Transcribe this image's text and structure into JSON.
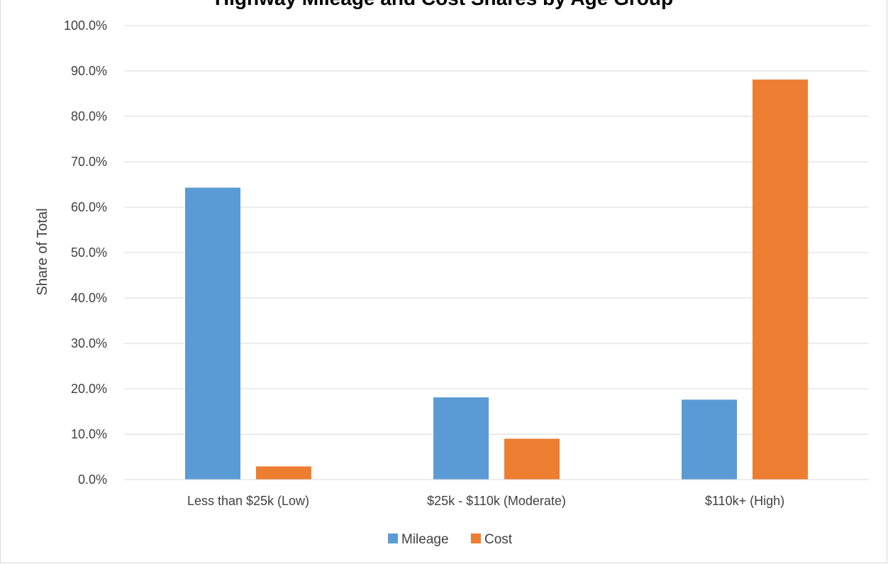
{
  "chart_data": {
    "type": "bar",
    "title": "Highway Mileage and Cost Shares by Age Group",
    "categories": [
      "Less than $25k (Low)",
      "$25k - $110k (Moderate)",
      "$110k+ (High)"
    ],
    "series": [
      {
        "name": "Mileage",
        "color": "#5b9bd5",
        "values": [
          64.3,
          18.1,
          17.6
        ]
      },
      {
        "name": "Cost",
        "color": "#ed7d31",
        "values": [
          2.9,
          9.0,
          88.1
        ]
      }
    ],
    "xlabel": "",
    "ylabel": "Share of Total",
    "ylim": [
      0,
      100
    ],
    "yticks": [
      "0.0%",
      "10.0%",
      "20.0%",
      "30.0%",
      "40.0%",
      "50.0%",
      "60.0%",
      "70.0%",
      "80.0%",
      "90.0%",
      "100.0%"
    ],
    "grid": true,
    "legend": "bottom"
  }
}
